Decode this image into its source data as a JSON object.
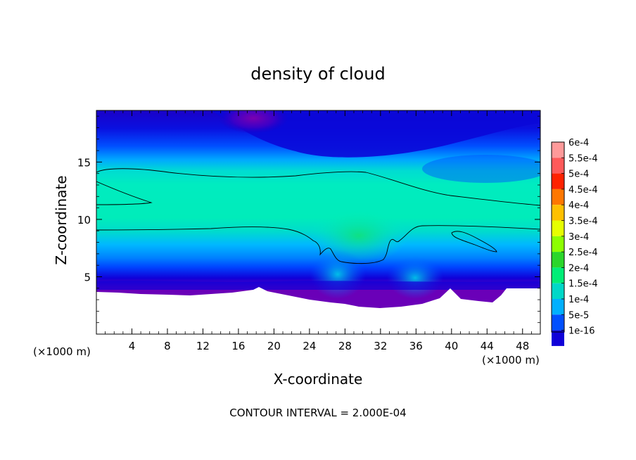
{
  "chart_data": {
    "type": "heatmap",
    "title": "density of cloud",
    "xlabel": "X-coordinate",
    "ylabel": "Z-coordinate",
    "x_unit_left": "(×1000 m)",
    "x_unit_right": "(×1000 m)",
    "footer": "CONTOUR INTERVAL = 2.000E-04",
    "xlim": [
      0,
      50
    ],
    "ylim": [
      0,
      19.5
    ],
    "x_ticks": [
      {
        "value": 4,
        "label": "4"
      },
      {
        "value": 8,
        "label": "8"
      },
      {
        "value": 12,
        "label": "12"
      },
      {
        "value": 16,
        "label": "16"
      },
      {
        "value": 20,
        "label": "20"
      },
      {
        "value": 24,
        "label": "24"
      },
      {
        "value": 28,
        "label": "28"
      },
      {
        "value": 32,
        "label": "32"
      },
      {
        "value": 36,
        "label": "36"
      },
      {
        "value": 40,
        "label": "40"
      },
      {
        "value": 44,
        "label": "44"
      },
      {
        "value": 48,
        "label": "48"
      }
    ],
    "y_ticks": [
      {
        "value": 5,
        "label": "5"
      },
      {
        "value": 10,
        "label": "10"
      },
      {
        "value": 15,
        "label": "15"
      }
    ],
    "colorbar": [
      {
        "label": "6e-4",
        "color": "#ff9a9a"
      },
      {
        "label": "5.5e-4",
        "color": "#ff5a5a"
      },
      {
        "label": "5e-4",
        "color": "#ff2200"
      },
      {
        "label": "4.5e-4",
        "color": "#ff7700"
      },
      {
        "label": "4e-4",
        "color": "#ffc000"
      },
      {
        "label": "3.5e-4",
        "color": "#e6ff00"
      },
      {
        "label": "3e-4",
        "color": "#8cff00"
      },
      {
        "label": "2.5e-4",
        "color": "#2bd62b"
      },
      {
        "label": "2e-4",
        "color": "#00ee77"
      },
      {
        "label": "1.5e-4",
        "color": "#00d8c8"
      },
      {
        "label": "1e-4",
        "color": "#00b0ff"
      },
      {
        "label": "5e-5",
        "color": "#0050ff"
      },
      {
        "label": "1e-16",
        "color": "#1000d8"
      },
      {
        "label": "",
        "color": "#6a00b8"
      }
    ]
  }
}
